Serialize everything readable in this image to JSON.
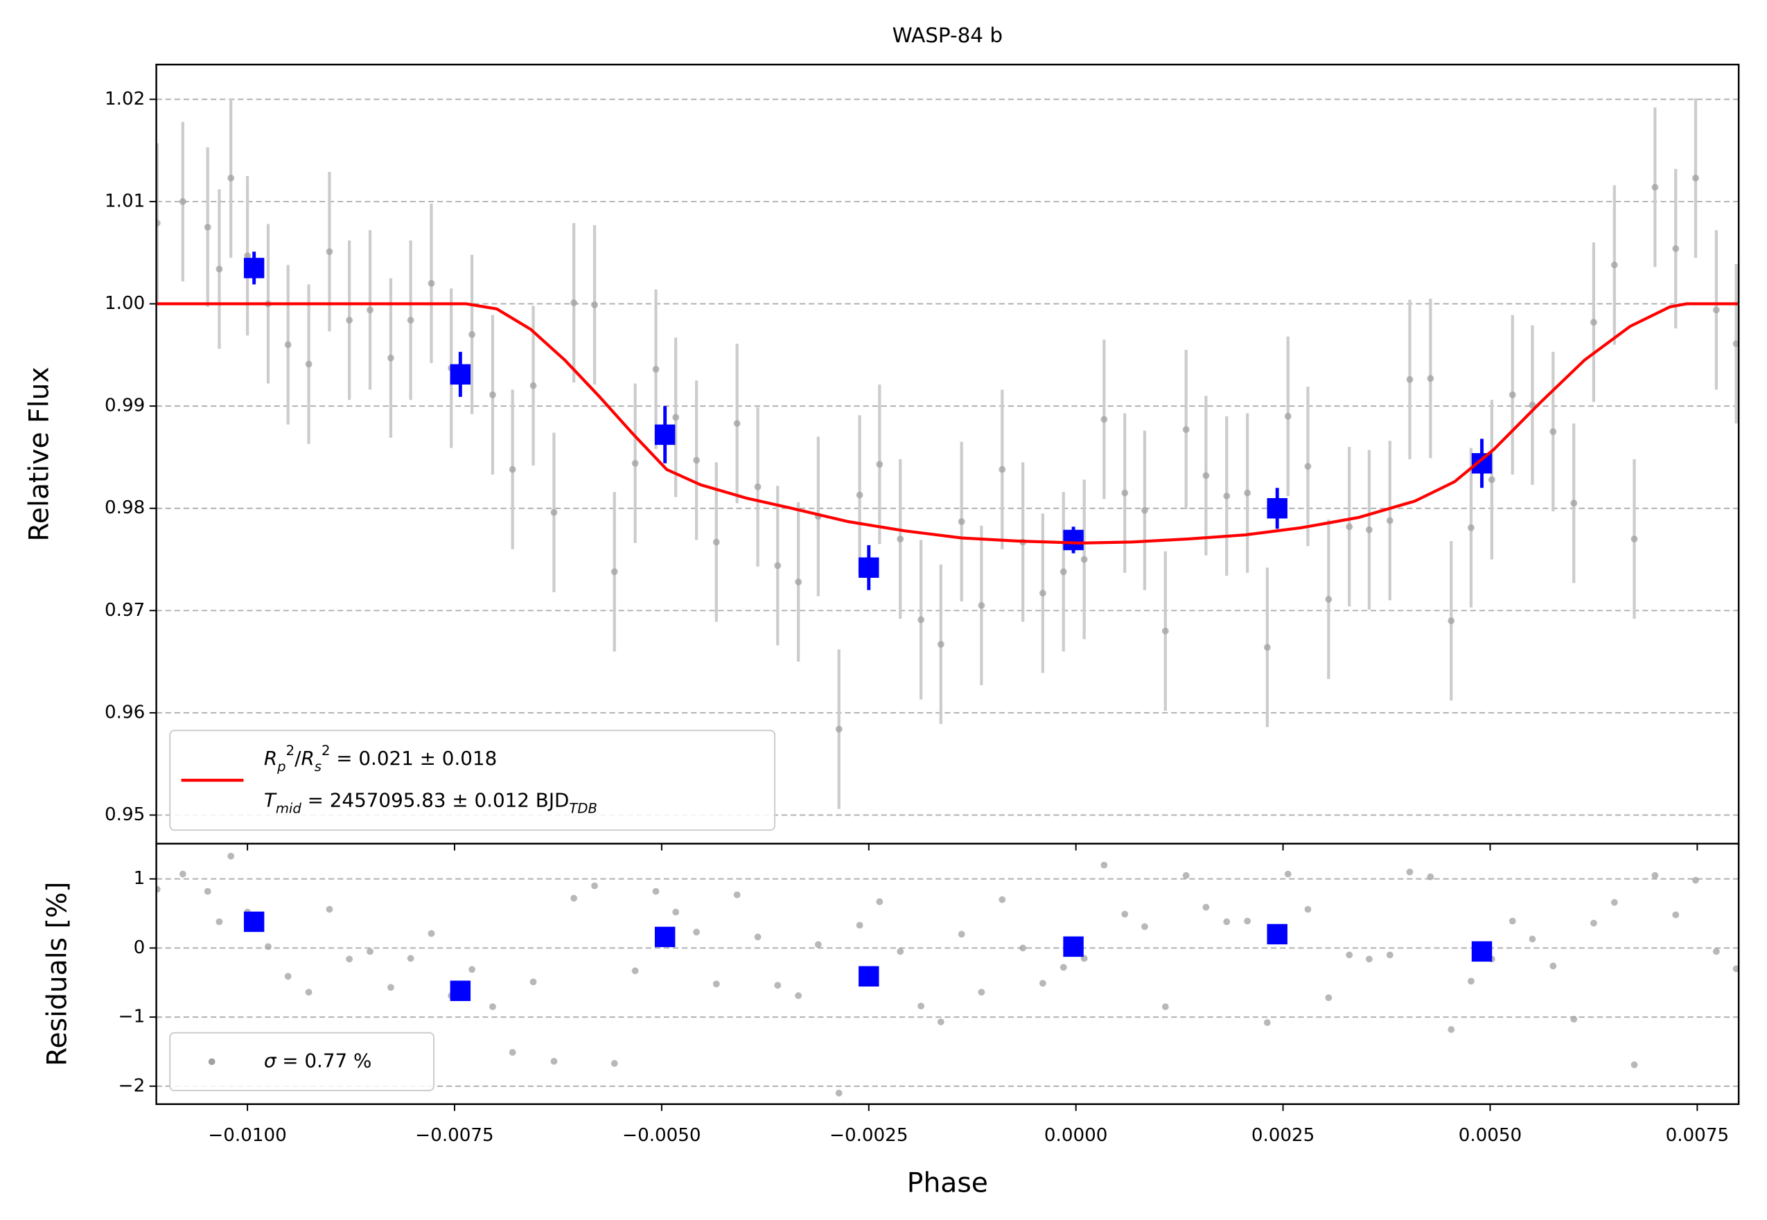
{
  "chart_data": [
    {
      "type": "scatter",
      "title": "WASP-84 b",
      "y_label": "Relative Flux",
      "xlim": [
        -0.0111,
        0.008
      ],
      "ylim": [
        0.9472,
        1.0234
      ],
      "yticks": [
        0.95,
        0.96,
        0.97,
        0.98,
        0.99,
        {
          "value": 1.0,
          "label": "1.00"
        },
        1.01,
        1.02
      ],
      "grid": true,
      "legend": "lower left",
      "series": [
        {
          "marker": "circle",
          "color": "#a0a0a0",
          "error_color": "#cccccc",
          "x": [
            -0.01109,
            -0.01078,
            -0.01048,
            -0.01034,
            -0.0102,
            -0.01,
            -0.00975,
            -0.00951,
            -0.00926,
            -0.00901,
            -0.00877,
            -0.00852,
            -0.00827,
            -0.00803,
            -0.00778,
            -0.00754,
            -0.00729,
            -0.00704,
            -0.0068,
            -0.00655,
            -0.0063,
            -0.00606,
            -0.00581,
            -0.00557,
            -0.00532,
            -0.00507,
            -0.00483,
            -0.00458,
            -0.00434,
            -0.00409,
            -0.00384,
            -0.0036,
            -0.00335,
            -0.00311,
            -0.00286,
            -0.00261,
            -0.00237,
            -0.00212,
            -0.00187,
            -0.00163,
            -0.00138,
            -0.00114,
            -0.00089,
            -0.00064,
            -0.0004,
            -0.00015,
            0.0001,
            0.00034,
            0.00059,
            0.00083,
            0.00108,
            0.00133,
            0.00157,
            0.00182,
            0.00207,
            0.00231,
            0.00256,
            0.0028,
            0.00305,
            0.0033,
            0.00354,
            0.00379,
            0.00403,
            0.00428,
            0.00453,
            0.00477,
            0.00502,
            0.00527,
            0.00551,
            0.00576,
            0.00601,
            0.00625,
            0.0065,
            0.00674,
            0.00699,
            0.00724,
            0.00748,
            0.00773,
            0.00797
          ],
          "values": [
            1.0079,
            1.01,
            1.0075,
            1.0034,
            1.0123,
            1.0047,
            1.0,
            0.996,
            0.9941,
            1.0051,
            0.9984,
            0.9994,
            0.9947,
            0.9984,
            1.002,
            0.9937,
            0.997,
            0.9911,
            0.9838,
            0.992,
            0.9796,
            1.0001,
            0.9999,
            0.9738,
            0.9844,
            0.9936,
            0.9889,
            0.9847,
            0.9767,
            0.9883,
            0.9821,
            0.9744,
            0.9728,
            0.9792,
            0.9584,
            0.9813,
            0.9843,
            0.977,
            0.9691,
            0.9667,
            0.9787,
            0.9705,
            0.9838,
            0.9767,
            0.9717,
            0.9738,
            0.975,
            0.9887,
            0.9815,
            0.9798,
            0.968,
            0.9877,
            0.9832,
            0.9812,
            0.9815,
            0.9664,
            0.989,
            0.9841,
            0.9711,
            0.9782,
            0.9779,
            0.9788,
            0.9926,
            0.9927,
            0.969,
            0.9781,
            0.9828,
            0.9911,
            0.9901,
            0.9875,
            0.9805,
            0.9982,
            1.0038,
            0.977,
            1.0114,
            1.0054,
            1.0123,
            0.9994,
            0.9961
          ],
          "errors": [
            0.0078,
            0.0078,
            0.0078,
            0.0078,
            0.0078,
            0.0078,
            0.0078,
            0.0078,
            0.0078,
            0.0078,
            0.0078,
            0.0078,
            0.0078,
            0.0078,
            0.0078,
            0.0078,
            0.0078,
            0.0078,
            0.0078,
            0.0078,
            0.0078,
            0.0078,
            0.0078,
            0.0078,
            0.0078,
            0.0078,
            0.0078,
            0.0078,
            0.0078,
            0.0078,
            0.0078,
            0.0078,
            0.0078,
            0.0078,
            0.0078,
            0.0078,
            0.0078,
            0.0078,
            0.0078,
            0.0078,
            0.0078,
            0.0078,
            0.0078,
            0.0078,
            0.0078,
            0.0078,
            0.0078,
            0.0078,
            0.0078,
            0.0078,
            0.0078,
            0.0078,
            0.0078,
            0.0078,
            0.0078,
            0.0078,
            0.0078,
            0.0078,
            0.0078,
            0.0078,
            0.0078,
            0.0078,
            0.0078,
            0.0078,
            0.0078,
            0.0078,
            0.0078,
            0.0078,
            0.0078,
            0.0078,
            0.0078,
            0.0078,
            0.0078,
            0.0078,
            0.0078,
            0.0078,
            0.0078,
            0.0078,
            0.0078
          ]
        },
        {
          "marker": "square",
          "color": "#0000ff",
          "x": [
            -0.00992,
            -0.00743,
            -0.00496,
            -0.0025,
            -3e-05,
            0.00243,
            0.0049
          ],
          "values": [
            1.0035,
            0.9931,
            0.9872,
            0.9742,
            0.9769,
            0.98,
            0.9844
          ],
          "errors": [
            0.0016,
            0.0022,
            0.0028,
            0.0022,
            0.0013,
            0.002,
            0.0024
          ]
        },
        {
          "marker": "line",
          "color": "#ff0000",
          "name": [
            [
              {
                "text": "R",
                "italic": true
              },
              {
                "text": "p",
                "italic": true,
                "script": "sub"
              },
              {
                "text": "2",
                "script": "super"
              },
              {
                "text": "/"
              },
              {
                "text": "R",
                "italic": true
              },
              {
                "text": "s",
                "italic": true,
                "script": "sub"
              },
              {
                "text": "2",
                "script": "super"
              },
              {
                "text": " = 0.021 ± 0.018"
              }
            ],
            [
              {
                "text": "T",
                "italic": true
              },
              {
                "text": "mid",
                "italic": true,
                "script": "sub"
              },
              {
                "text": " = 2457095.83 ± 0.012 BJD"
              },
              {
                "text": "TDB",
                "italic": true,
                "script": "sub"
              }
            ]
          ],
          "x": [
            -0.0111,
            -0.00736,
            -0.00699,
            -0.00658,
            -0.00617,
            -0.00576,
            -0.00535,
            -0.00494,
            -0.00453,
            -0.00398,
            -0.00343,
            -0.00275,
            -0.00207,
            -0.00138,
            -0.0007,
            5e-05,
            0.00067,
            0.00135,
            0.00204,
            0.00272,
            0.00341,
            0.00409,
            0.00457,
            0.00505,
            0.0056,
            0.00614,
            0.00669,
            0.00717,
            0.00737,
            0.008
          ],
          "values": [
            1.0,
            1.0,
            0.9995,
            0.9975,
            0.9945,
            0.991,
            0.9873,
            0.9838,
            0.9823,
            0.981,
            0.98,
            0.9787,
            0.9778,
            0.9771,
            0.9768,
            0.9766,
            0.9767,
            0.977,
            0.9774,
            0.9781,
            0.9791,
            0.9807,
            0.9826,
            0.9858,
            0.9903,
            0.9945,
            0.9978,
            0.9997,
            1.0,
            1.0
          ]
        }
      ]
    },
    {
      "type": "scatter",
      "y_label": "Residuals [%]",
      "x_label": "Phase",
      "xlim": [
        -0.0111,
        0.008
      ],
      "ylim": [
        -2.26,
        1.51
      ],
      "xticks": [
        {
          "value": -0.01,
          "label": "−0.0100"
        },
        {
          "value": -0.0075,
          "label": "−0.0075"
        },
        {
          "value": -0.005,
          "label": "−0.0050"
        },
        {
          "value": -0.0025,
          "label": "−0.0025"
        },
        {
          "value": 0,
          "label": "0.0000"
        },
        {
          "value": 0.0025,
          "label": "0.0025"
        },
        {
          "value": 0.005,
          "label": "0.0050"
        },
        {
          "value": 0.0075,
          "label": "0.0075"
        }
      ],
      "yticks": [
        {
          "value": -2,
          "label": "−2"
        },
        {
          "value": -1,
          "label": "−1"
        },
        0,
        1
      ],
      "grid": true,
      "legend": "lower left",
      "series": [
        {
          "marker": "circle",
          "color": "#a0a0a0",
          "name": [
            [
              {
                "text": "σ",
                "italic": true
              },
              {
                "text": " = 0.77 %"
              }
            ]
          ],
          "x": [
            -0.01109,
            -0.01078,
            -0.01048,
            -0.01034,
            -0.0102,
            -0.01,
            -0.00975,
            -0.00951,
            -0.00926,
            -0.00901,
            -0.00877,
            -0.00852,
            -0.00827,
            -0.00803,
            -0.00778,
            -0.00754,
            -0.00729,
            -0.00704,
            -0.0068,
            -0.00655,
            -0.0063,
            -0.00606,
            -0.00581,
            -0.00557,
            -0.00532,
            -0.00507,
            -0.00483,
            -0.00458,
            -0.00434,
            -0.00409,
            -0.00384,
            -0.0036,
            -0.00335,
            -0.00311,
            -0.00286,
            -0.00261,
            -0.00237,
            -0.00212,
            -0.00187,
            -0.00163,
            -0.00138,
            -0.00114,
            -0.00089,
            -0.00064,
            -0.0004,
            -0.00015,
            0.0001,
            0.00034,
            0.00059,
            0.00083,
            0.00108,
            0.00133,
            0.00157,
            0.00182,
            0.00207,
            0.00231,
            0.00256,
            0.0028,
            0.00305,
            0.0033,
            0.00354,
            0.00379,
            0.00403,
            0.00428,
            0.00453,
            0.00477,
            0.00502,
            0.00527,
            0.00551,
            0.00576,
            0.00601,
            0.00625,
            0.0065,
            0.00674,
            0.00699,
            0.00724,
            0.00748,
            0.00773,
            0.00797
          ],
          "values": [
            0.85,
            1.07,
            0.82,
            0.38,
            1.33,
            0.52,
            0.02,
            -0.41,
            -0.64,
            0.56,
            -0.16,
            -0.05,
            -0.57,
            -0.15,
            0.21,
            -0.69,
            -0.31,
            -0.85,
            -1.51,
            -0.49,
            -1.64,
            0.72,
            0.9,
            -1.67,
            -0.33,
            0.82,
            0.52,
            0.23,
            -0.52,
            0.77,
            0.16,
            -0.54,
            -0.69,
            0.05,
            -2.1,
            0.33,
            0.67,
            -0.05,
            -0.84,
            -1.07,
            0.2,
            -0.64,
            0.7,
            0.0,
            -0.51,
            -0.28,
            -0.15,
            1.2,
            0.49,
            0.31,
            -0.85,
            1.05,
            0.59,
            0.38,
            0.39,
            -1.08,
            1.07,
            0.56,
            -0.72,
            -0.1,
            -0.16,
            -0.1,
            1.1,
            1.03,
            -1.18,
            -0.48,
            -0.16,
            0.39,
            0.13,
            -0.26,
            -1.03,
            0.36,
            0.66,
            -1.69,
            1.05,
            0.48,
            0.98,
            -0.05,
            -0.3
          ]
        },
        {
          "marker": "square",
          "color": "#0000ff",
          "x": [
            -0.00992,
            -0.00743,
            -0.00496,
            -0.0025,
            -3e-05,
            0.00243,
            0.0049
          ],
          "values": [
            0.38,
            -0.62,
            0.16,
            -0.41,
            0.02,
            0.2,
            -0.05
          ]
        }
      ]
    }
  ]
}
